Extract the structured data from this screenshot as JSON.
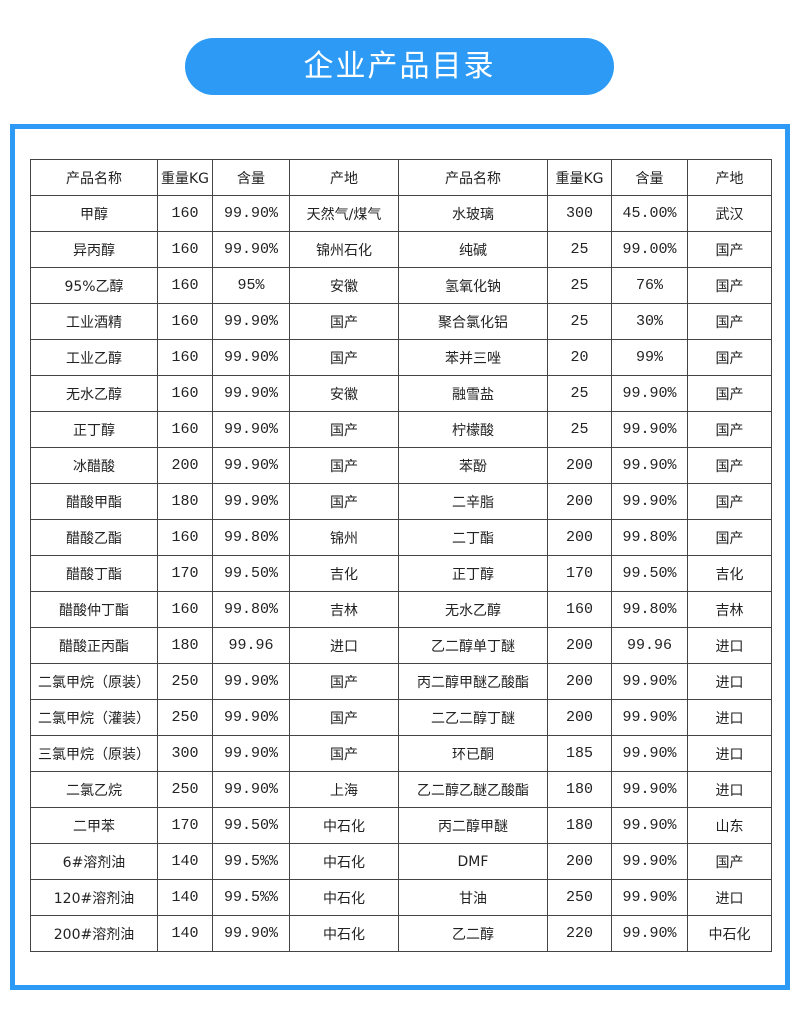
{
  "title": "企业产品目录",
  "colors": {
    "accent": "#2d9bf6"
  },
  "table": {
    "headers": [
      "产品名称",
      "重量KG",
      "含量",
      "产地",
      "产品名称",
      "重量KG",
      "含量",
      "产地"
    ],
    "rows": [
      [
        "甲醇",
        "160",
        "99.90%",
        "天然气/煤气",
        "水玻璃",
        "300",
        "45.00%",
        "武汉"
      ],
      [
        "异丙醇",
        "160",
        "99.90%",
        "锦州石化",
        "纯碱",
        "25",
        "99.00%",
        "国产"
      ],
      [
        "95%乙醇",
        "160",
        "95%",
        "安徽",
        "氢氧化钠",
        "25",
        "76%",
        "国产"
      ],
      [
        "工业酒精",
        "160",
        "99.90%",
        "国产",
        "聚合氯化铝",
        "25",
        "30%",
        "国产"
      ],
      [
        "工业乙醇",
        "160",
        "99.90%",
        "国产",
        "苯并三唑",
        "20",
        "99%",
        "国产"
      ],
      [
        "无水乙醇",
        "160",
        "99.90%",
        "安徽",
        "融雪盐",
        "25",
        "99.90%",
        "国产"
      ],
      [
        "正丁醇",
        "160",
        "99.90%",
        "国产",
        "柠檬酸",
        "25",
        "99.90%",
        "国产"
      ],
      [
        "冰醋酸",
        "200",
        "99.90%",
        "国产",
        "苯酚",
        "200",
        "99.90%",
        "国产"
      ],
      [
        "醋酸甲酯",
        "180",
        "99.90%",
        "国产",
        "二辛脂",
        "200",
        "99.90%",
        "国产"
      ],
      [
        "醋酸乙酯",
        "160",
        "99.80%",
        "锦州",
        "二丁酯",
        "200",
        "99.80%",
        "国产"
      ],
      [
        "醋酸丁酯",
        "170",
        "99.50%",
        "吉化",
        "正丁醇",
        "170",
        "99.50%",
        "吉化"
      ],
      [
        "醋酸仲丁酯",
        "160",
        "99.80%",
        "吉林",
        "无水乙醇",
        "160",
        "99.80%",
        "吉林"
      ],
      [
        "醋酸正丙酯",
        "180",
        "99.96",
        "进口",
        "乙二醇单丁醚",
        "200",
        "99.96",
        "进口"
      ],
      [
        "二氯甲烷（原装）",
        "250",
        "99.90%",
        "国产",
        "丙二醇甲醚乙酸酯",
        "200",
        "99.90%",
        "进口"
      ],
      [
        "二氯甲烷（灌装）",
        "250",
        "99.90%",
        "国产",
        "二乙二醇丁醚",
        "200",
        "99.90%",
        "进口"
      ],
      [
        "三氯甲烷（原装）",
        "300",
        "99.90%",
        "国产",
        "环已酮",
        "185",
        "99.90%",
        "进口"
      ],
      [
        "二氯乙烷",
        "250",
        "99.90%",
        "上海",
        "乙二醇乙醚乙酸酯",
        "180",
        "99.90%",
        "进口"
      ],
      [
        "二甲苯",
        "170",
        "99.50%",
        "中石化",
        "丙二醇甲醚",
        "180",
        "99.90%",
        "山东"
      ],
      [
        "6#溶剂油",
        "140",
        "99.5%%",
        "中石化",
        "DMF",
        "200",
        "99.90%",
        "国产"
      ],
      [
        "120#溶剂油",
        "140",
        "99.5%%",
        "中石化",
        "甘油",
        "250",
        "99.90%",
        "进口"
      ],
      [
        "200#溶剂油",
        "140",
        "99.90%",
        "中石化",
        "乙二醇",
        "220",
        "99.90%",
        "中石化"
      ]
    ]
  }
}
